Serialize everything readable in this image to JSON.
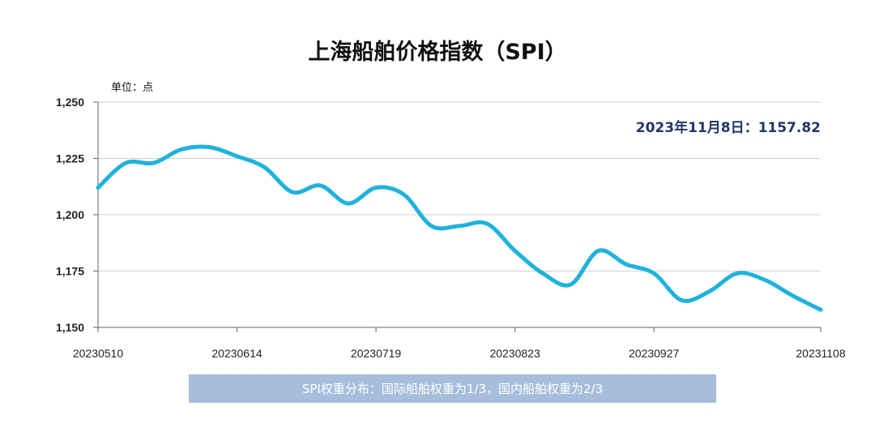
{
  "chart_data": {
    "type": "line",
    "title": "上海船舶价格指数（SPI）",
    "unit_label": "单位：点",
    "x": [
      "20230510",
      "20230517",
      "20230524",
      "20230531",
      "20230607",
      "20230614",
      "20230621",
      "20230628",
      "20230705",
      "20230712",
      "20230719",
      "20230726",
      "20230802",
      "20230809",
      "20230816",
      "20230823",
      "20230830",
      "20230906",
      "20230913",
      "20230920",
      "20230927",
      "20231004",
      "20231011",
      "20231018",
      "20231025",
      "20231101",
      "20231108"
    ],
    "xticks": [
      "20230510",
      "20230614",
      "20230719",
      "20230823",
      "20230927",
      "20231108"
    ],
    "series": [
      {
        "values": [
          1212,
          1223,
          1223,
          1229,
          1230,
          1226,
          1221,
          1210,
          1213,
          1205,
          1212,
          1209,
          1195,
          1195,
          1196,
          1184,
          1174,
          1169,
          1184,
          1178,
          1174,
          1162,
          1166,
          1174,
          1171,
          1164,
          1157.82
        ]
      }
    ],
    "ylim": [
      1150,
      1250
    ],
    "yticks": [
      "1,150",
      "1,175",
      "1,200",
      "1,225",
      "1,250"
    ],
    "yticks_values": [
      1150,
      1175,
      1200,
      1225,
      1250
    ],
    "annotation": "2023年11月8日：1157.82",
    "grid": true,
    "colors": {
      "line": "#1fb2dc",
      "annotation": "#1f3864",
      "grid": "#d0d0d0",
      "axis": "#666666"
    }
  },
  "footer_note": "SPI权重分布：国际船舶权重为1/3，国内船舶权重为2/3"
}
